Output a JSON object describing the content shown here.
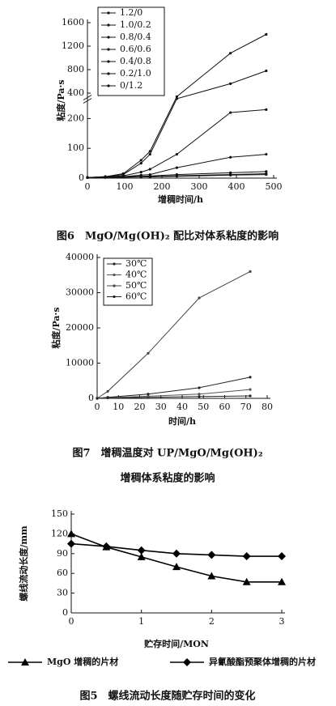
{
  "chart_data": [
    {
      "type": "line",
      "caption": [
        "图6　MgO/Mg(OH)₂ 配比对体系粘度的影响"
      ],
      "xlabel": "增稠时间/h",
      "ylabel": "粘度/Pa·s",
      "x": [
        0,
        48,
        96,
        144,
        168,
        240,
        384,
        480
      ],
      "xlim": [
        0,
        500
      ],
      "xticks": [
        0,
        100,
        200,
        300,
        400,
        500
      ],
      "ylim": [
        0,
        1600
      ],
      "ybreak": [
        250,
        400
      ],
      "yticks": [
        0,
        100,
        200,
        400,
        800,
        1200,
        1600
      ],
      "legend": "upper left",
      "series": [
        {
          "name": "1.2/0",
          "color": "#111",
          "marker": "dot",
          "values": [
            2,
            5,
            15,
            60,
            90,
            350,
            1080,
            1400
          ]
        },
        {
          "name": "1.0/0.2",
          "color": "#111",
          "marker": "dot",
          "values": [
            2,
            5,
            12,
            50,
            80,
            320,
            560,
            780
          ]
        },
        {
          "name": "0.8/0.4",
          "color": "#111",
          "marker": "dot",
          "values": [
            2,
            4,
            8,
            20,
            30,
            80,
            220,
            230
          ]
        },
        {
          "name": "0.6/0.6",
          "color": "#111",
          "marker": "dot",
          "values": [
            2,
            3,
            5,
            10,
            12,
            35,
            70,
            80
          ]
        },
        {
          "name": "0.4/0.8",
          "color": "#111",
          "marker": "dot",
          "values": [
            2,
            3,
            4,
            6,
            7,
            12,
            18,
            22
          ]
        },
        {
          "name": "0.2/1.0",
          "color": "#111",
          "marker": "dot",
          "values": [
            2,
            3,
            3,
            5,
            5,
            8,
            12,
            15
          ]
        },
        {
          "name": "0/1.2",
          "color": "#111",
          "marker": "dot",
          "values": [
            2,
            2,
            3,
            4,
            4,
            6,
            10,
            12
          ]
        }
      ]
    },
    {
      "type": "line",
      "caption": [
        "图7　增稠温度对 UP/MgO/Mg(OH)₂",
        "增稠体系粘度的影响"
      ],
      "xlabel": "时间/h",
      "ylabel": "粘度/Pa·s",
      "x": [
        0,
        5,
        24,
        48,
        72
      ],
      "xlim": [
        0,
        80
      ],
      "xticks": [
        0,
        10,
        20,
        30,
        40,
        50,
        60,
        70,
        80
      ],
      "ylim": [
        0,
        40000
      ],
      "yticks": [
        0,
        10000,
        20000,
        30000,
        40000
      ],
      "legend": "upper left",
      "series": [
        {
          "name": "30℃",
          "color": "#222",
          "marker": "dot",
          "values": [
            0,
            100,
            300,
            500,
            700
          ]
        },
        {
          "name": "40℃",
          "color": "#555",
          "marker": "dot",
          "values": [
            0,
            200,
            600,
            1200,
            2500
          ]
        },
        {
          "name": "50℃",
          "color": "#444",
          "marker": "dot",
          "values": [
            0,
            2000,
            12800,
            28500,
            36000
          ]
        },
        {
          "name": "60℃",
          "color": "#222",
          "marker": "dot",
          "values": [
            0,
            300,
            1200,
            3000,
            6000
          ]
        }
      ]
    },
    {
      "type": "line",
      "caption": [
        "图5　螺线流动长度随贮存时间的变化"
      ],
      "xlabel": "贮存时间/MON",
      "ylabel": "螺线流动长度/mm",
      "x": [
        0,
        0.5,
        1,
        1.5,
        2,
        2.5,
        3
      ],
      "xlim": [
        0,
        3
      ],
      "xticks": [
        0,
        1,
        2,
        3
      ],
      "ylim": [
        0,
        150
      ],
      "yticks": [
        0,
        30,
        60,
        90,
        120,
        150
      ],
      "legend": "below",
      "series": [
        {
          "name": "MgO 增稠的片材",
          "color": "#000",
          "marker": "triangle",
          "values": [
            120,
            100,
            85,
            70,
            56,
            47,
            47
          ]
        },
        {
          "name": "异氰酸酯预聚体增稠的片材",
          "color": "#000",
          "marker": "diamond",
          "values": [
            105,
            101,
            95,
            90,
            88,
            86,
            86
          ]
        }
      ]
    }
  ]
}
